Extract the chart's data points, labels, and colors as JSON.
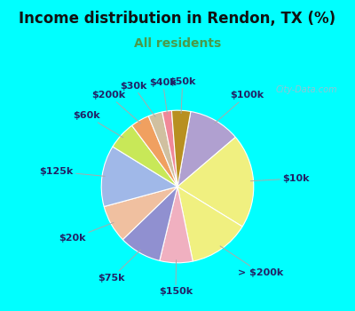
{
  "title": "Income distribution in Rendon, TX (%)",
  "subtitle": "All residents",
  "background_color": "#00FFFF",
  "chart_bg_color": "#ddf0e8",
  "watermark": "City-Data.com",
  "labels": [
    "$100k",
    "$10k",
    "> $200k",
    "$150k",
    "$75k",
    "$20k",
    "$125k",
    "$60k",
    "$200k",
    "$30k",
    "$40k",
    "$50k"
  ],
  "values": [
    11,
    20,
    13,
    7,
    9,
    8,
    13,
    6,
    4,
    3,
    2,
    4
  ],
  "colors": [
    "#b0a0d0",
    "#f0f080",
    "#f0f080",
    "#f0b0c0",
    "#9090d0",
    "#f0c0a0",
    "#a0b8e8",
    "#c8e858",
    "#f0a060",
    "#d0c0a0",
    "#f08898",
    "#b89020"
  ],
  "startangle": 80,
  "label_fontsize": 8,
  "label_color": "#222266",
  "title_color": "#111111",
  "title_fontsize": 12,
  "subtitle_color": "#4a9a4a",
  "subtitle_fontsize": 10,
  "watermark_color": "#aabbcc",
  "line_color": "#aaaaaa"
}
